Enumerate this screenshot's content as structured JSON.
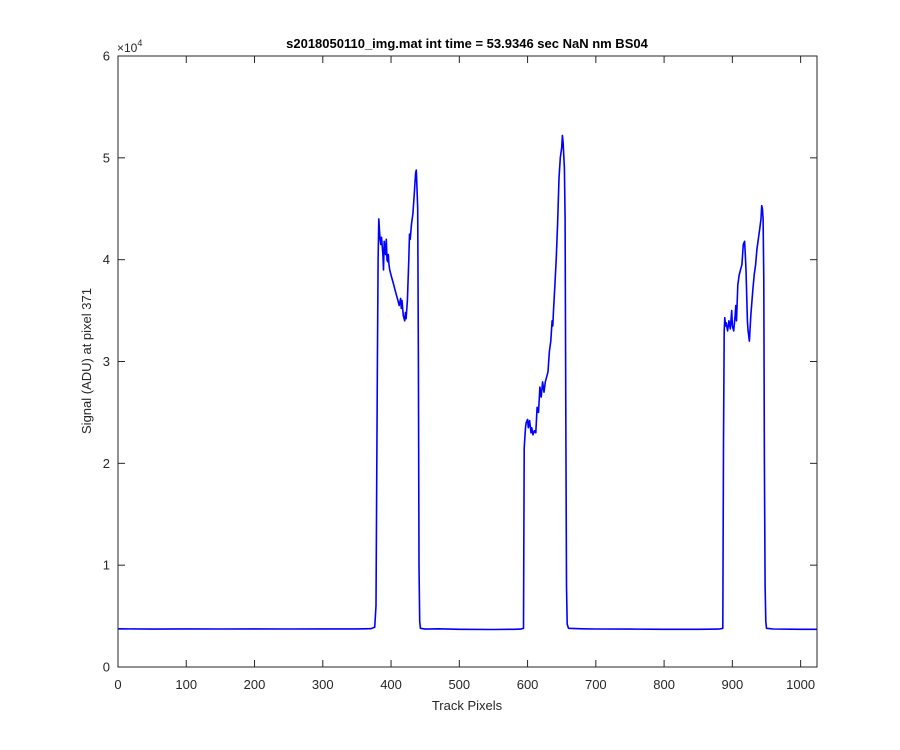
{
  "chart_data": {
    "type": "line",
    "title": "s2018050110_img.mat int time = 53.9346 sec  NaN nm BS04",
    "xlabel": "Track Pixels",
    "ylabel": "Signal (ADU) at pixel 371",
    "xlim": [
      0,
      1024
    ],
    "ylim": [
      0,
      60000
    ],
    "x_ticks": [
      "0",
      "100",
      "200",
      "300",
      "400",
      "500",
      "600",
      "700",
      "800",
      "900",
      "1000"
    ],
    "y_ticks": [
      "0",
      "1",
      "2",
      "3",
      "4",
      "5",
      "6"
    ],
    "y_exponent": {
      "base": "×10",
      "power": "4"
    },
    "grid": false,
    "series": [
      {
        "color": "#0000ff",
        "points": [
          [
            0,
            3750
          ],
          [
            50,
            3720
          ],
          [
            100,
            3740
          ],
          [
            150,
            3730
          ],
          [
            200,
            3740
          ],
          [
            250,
            3735
          ],
          [
            300,
            3740
          ],
          [
            350,
            3740
          ],
          [
            370,
            3760
          ],
          [
            376,
            3900
          ],
          [
            378,
            6000
          ],
          [
            380,
            30000
          ],
          [
            381,
            40000
          ],
          [
            382,
            44000
          ],
          [
            383,
            43000
          ],
          [
            384,
            42000
          ],
          [
            385,
            41500
          ],
          [
            386,
            42200
          ],
          [
            388,
            40500
          ],
          [
            389,
            39000
          ],
          [
            390,
            41800
          ],
          [
            391,
            41000
          ],
          [
            392,
            40500
          ],
          [
            393,
            42000
          ],
          [
            394,
            40000
          ],
          [
            395,
            39800
          ],
          [
            396,
            40500
          ],
          [
            397,
            39500
          ],
          [
            398,
            39000
          ],
          [
            400,
            38500
          ],
          [
            402,
            38000
          ],
          [
            404,
            37500
          ],
          [
            406,
            37000
          ],
          [
            408,
            36500
          ],
          [
            410,
            36000
          ],
          [
            412,
            35500
          ],
          [
            414,
            36200
          ],
          [
            415,
            35200
          ],
          [
            416,
            36000
          ],
          [
            418,
            34500
          ],
          [
            420,
            34000
          ],
          [
            421,
            34800
          ],
          [
            422,
            34200
          ],
          [
            424,
            36000
          ],
          [
            425,
            38000
          ],
          [
            426,
            40000
          ],
          [
            427,
            42500
          ],
          [
            428,
            42000
          ],
          [
            430,
            43500
          ],
          [
            432,
            44500
          ],
          [
            434,
            46500
          ],
          [
            436,
            48500
          ],
          [
            437,
            48800
          ],
          [
            438,
            47000
          ],
          [
            439,
            45000
          ],
          [
            440,
            30000
          ],
          [
            441,
            10000
          ],
          [
            442,
            4500
          ],
          [
            443,
            3800
          ],
          [
            450,
            3720
          ],
          [
            470,
            3750
          ],
          [
            500,
            3700
          ],
          [
            550,
            3680
          ],
          [
            580,
            3700
          ],
          [
            590,
            3720
          ],
          [
            594,
            3800
          ],
          [
            595,
            21500
          ],
          [
            597,
            23500
          ],
          [
            598,
            24000
          ],
          [
            600,
            24300
          ],
          [
            601,
            23500
          ],
          [
            603,
            24200
          ],
          [
            605,
            23000
          ],
          [
            606,
            23500
          ],
          [
            608,
            22800
          ],
          [
            610,
            23200
          ],
          [
            612,
            23000
          ],
          [
            614,
            25500
          ],
          [
            616,
            25000
          ],
          [
            618,
            27500
          ],
          [
            620,
            26500
          ],
          [
            622,
            28000
          ],
          [
            624,
            27000
          ],
          [
            626,
            28000
          ],
          [
            628,
            28500
          ],
          [
            630,
            29000
          ],
          [
            632,
            31000
          ],
          [
            634,
            32000
          ],
          [
            636,
            34000
          ],
          [
            637,
            33500
          ],
          [
            638,
            35000
          ],
          [
            640,
            37500
          ],
          [
            642,
            40000
          ],
          [
            644,
            43500
          ],
          [
            646,
            48000
          ],
          [
            648,
            50000
          ],
          [
            650,
            51000
          ],
          [
            651,
            52200
          ],
          [
            652,
            51500
          ],
          [
            654,
            49000
          ],
          [
            655,
            44000
          ],
          [
            656,
            25000
          ],
          [
            657,
            8000
          ],
          [
            658,
            4200
          ],
          [
            660,
            3800
          ],
          [
            680,
            3750
          ],
          [
            700,
            3730
          ],
          [
            750,
            3720
          ],
          [
            800,
            3700
          ],
          [
            850,
            3700
          ],
          [
            880,
            3720
          ],
          [
            886,
            3800
          ],
          [
            887,
            22000
          ],
          [
            888,
            33000
          ],
          [
            889,
            34300
          ],
          [
            890,
            33500
          ],
          [
            891,
            33800
          ],
          [
            893,
            33000
          ],
          [
            895,
            34000
          ],
          [
            897,
            33200
          ],
          [
            899,
            35000
          ],
          [
            900,
            33500
          ],
          [
            902,
            33000
          ],
          [
            904,
            34500
          ],
          [
            905,
            35500
          ],
          [
            906,
            34000
          ],
          [
            908,
            37500
          ],
          [
            910,
            38500
          ],
          [
            912,
            39000
          ],
          [
            914,
            39500
          ],
          [
            916,
            41500
          ],
          [
            918,
            41800
          ],
          [
            919,
            40500
          ],
          [
            920,
            39000
          ],
          [
            922,
            34000
          ],
          [
            923,
            33000
          ],
          [
            925,
            32000
          ],
          [
            927,
            34500
          ],
          [
            930,
            37000
          ],
          [
            932,
            38500
          ],
          [
            934,
            39500
          ],
          [
            936,
            41000
          ],
          [
            938,
            42000
          ],
          [
            940,
            43000
          ],
          [
            942,
            44000
          ],
          [
            943,
            45300
          ],
          [
            944,
            45000
          ],
          [
            945,
            44000
          ],
          [
            946,
            38000
          ],
          [
            947,
            20000
          ],
          [
            948,
            8000
          ],
          [
            949,
            4500
          ],
          [
            950,
            3800
          ],
          [
            960,
            3730
          ],
          [
            1000,
            3700
          ],
          [
            1024,
            3700
          ]
        ]
      }
    ]
  }
}
